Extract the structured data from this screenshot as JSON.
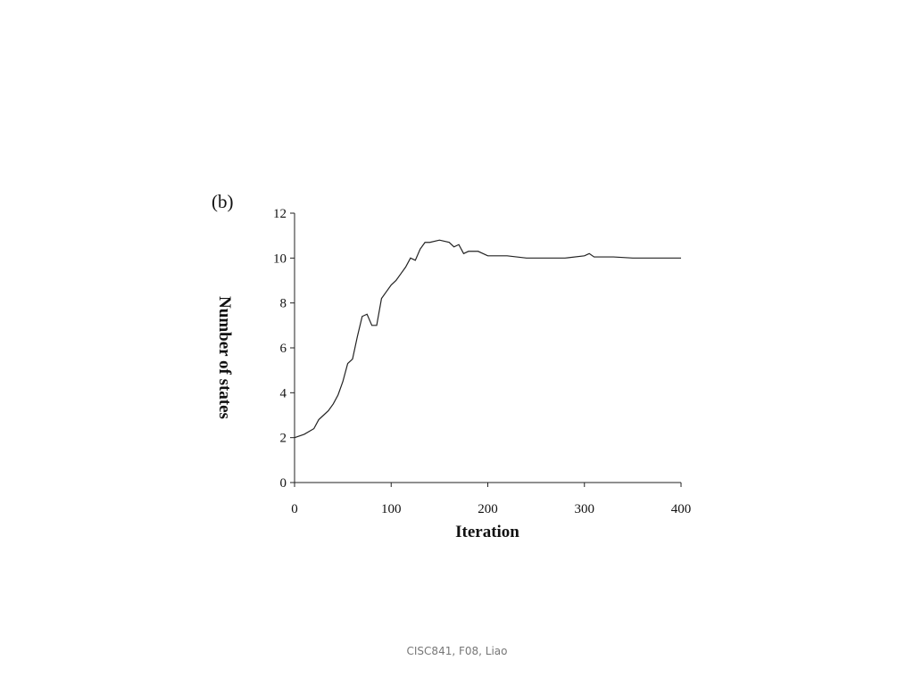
{
  "chart_data": {
    "type": "line",
    "panel_label": "(b)",
    "x_label": "Iteration",
    "y_label": "Number of states",
    "x": [
      0,
      10,
      20,
      25,
      30,
      35,
      40,
      45,
      50,
      55,
      60,
      65,
      70,
      75,
      80,
      85,
      90,
      95,
      100,
      105,
      110,
      115,
      120,
      125,
      130,
      135,
      140,
      150,
      160,
      165,
      170,
      175,
      180,
      190,
      200,
      220,
      240,
      260,
      280,
      300,
      305,
      310,
      330,
      350,
      370,
      400
    ],
    "series": [
      {
        "name": "Number of states",
        "color": "#222222",
        "values": [
          2.0,
          2.15,
          2.4,
          2.8,
          3.0,
          3.2,
          3.5,
          3.9,
          4.5,
          5.3,
          5.5,
          6.5,
          7.4,
          7.5,
          7.0,
          7.0,
          8.2,
          8.5,
          8.8,
          9.0,
          9.3,
          9.6,
          10.0,
          9.9,
          10.4,
          10.7,
          10.7,
          10.8,
          10.7,
          10.5,
          10.6,
          10.2,
          10.3,
          10.3,
          10.1,
          10.1,
          10.0,
          10.0,
          10.0,
          10.1,
          10.2,
          10.05,
          10.05,
          10.0,
          10.0,
          10.0
        ]
      }
    ],
    "xlim": [
      0,
      400
    ],
    "xticks": [
      0,
      100,
      200,
      300,
      400
    ],
    "ylim": [
      0,
      12
    ],
    "yticks": [
      0,
      2,
      4,
      6,
      8,
      10,
      12
    ]
  },
  "footer": "CISC841, F08, Liao"
}
